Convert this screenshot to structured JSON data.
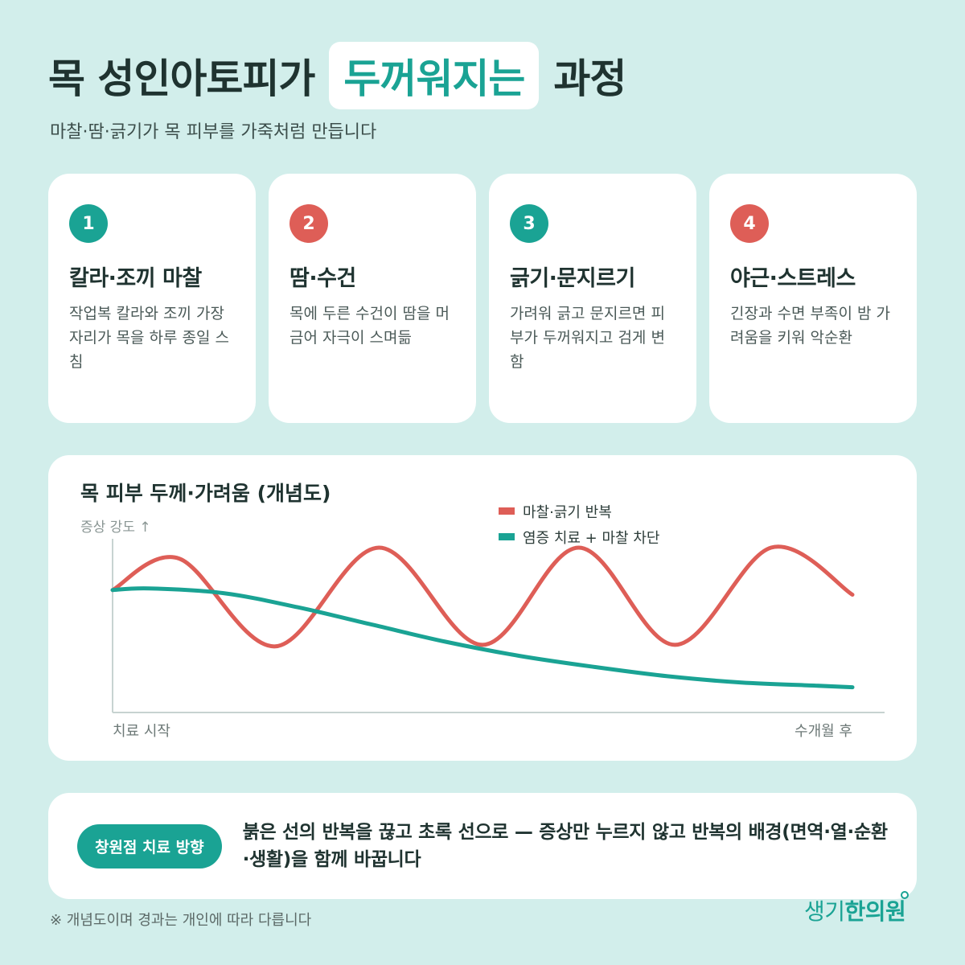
{
  "header": {
    "title_pre": "목 성인아토피가",
    "title_highlight": "두꺼워지는",
    "title_post": "과정",
    "subtitle": "마찰·땀·긁기가 목 피부를 가죽처럼 만듭니다"
  },
  "cards": [
    {
      "num": "1",
      "title": "칼라·조끼 마찰",
      "desc": "작업복 칼라와 조끼 가장자리가 목을 하루 종일 스침",
      "color": "#1aa394"
    },
    {
      "num": "2",
      "title": "땀·수건",
      "desc": "목에 두른 수건이 땀을 머금어 자극이 스며듦",
      "color": "#de5e57"
    },
    {
      "num": "3",
      "title": "긁기·문지르기",
      "desc": "가려워 긁고 문지르면 피부가 두꺼워지고 검게 변함",
      "color": "#1aa394"
    },
    {
      "num": "4",
      "title": "야근·스트레스",
      "desc": "긴장과 수면 부족이 밤 가려움을 키워 악순환",
      "color": "#de5e57"
    }
  ],
  "chart_data": {
    "type": "line",
    "title": "목 피부 두께·가려움 (개념도)",
    "ylabel": "증상 강도 ↑",
    "x_start_label": "치료 시작",
    "x_end_label": "수개월 후",
    "xlim": [
      0,
      1
    ],
    "ylim": [
      0,
      1
    ],
    "grid": false,
    "legend_position": "top-center",
    "series": [
      {
        "name": "마찰·긁기 반복",
        "color": "#de5e57",
        "x": [
          0,
          0.09,
          0.22,
          0.36,
          0.5,
          0.63,
          0.76,
          0.89,
          1.0
        ],
        "y": [
          0.73,
          0.93,
          0.37,
          1.0,
          0.38,
          1.0,
          0.38,
          1.0,
          0.7
        ]
      },
      {
        "name": "염증 치료 + 마찰 차단",
        "color": "#1aa394",
        "x": [
          0,
          0.05,
          0.15,
          0.25,
          0.35,
          0.45,
          0.55,
          0.65,
          0.75,
          0.85,
          0.95,
          1.0
        ],
        "y": [
          0.73,
          0.74,
          0.71,
          0.62,
          0.51,
          0.4,
          0.31,
          0.24,
          0.18,
          0.14,
          0.12,
          0.11
        ]
      }
    ]
  },
  "cta": {
    "pill": "창원점 치료 방향",
    "text": "붉은 선의 반복을 끊고 초록 선으로 — 증상만 누르지 않고 반복의 배경(면역·열·순환·생활)을 함께 바꿉니다"
  },
  "footer": {
    "note": "※ 개념도이며 경과는 개인에 따라 다릅니다",
    "logo_a": "생기",
    "logo_b": "한의원"
  }
}
